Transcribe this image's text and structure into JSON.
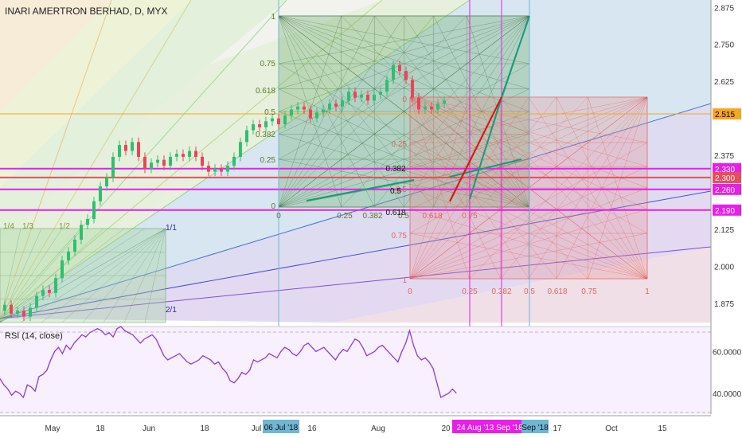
{
  "title": "INARI AMERTRON BERHAD, D, MYX",
  "rsi_label": "RSI (14, close)",
  "price_axis": {
    "ticks": [
      "2.875",
      "2.750",
      "2.625",
      "2.375",
      "2.125",
      "2.000",
      "1.875"
    ]
  },
  "rsi_axis": {
    "ticks": [
      "60.0000",
      "40.0000"
    ]
  },
  "time_axis": {
    "ticks": [
      "May",
      "18",
      "Jun",
      "18",
      "Jul",
      "16",
      "Aug",
      "20",
      "17",
      "Oct",
      "15"
    ]
  },
  "price_badges": [
    {
      "label": "2.515",
      "color": "#f5a623",
      "text_color": "#000000"
    },
    {
      "label": "2.330",
      "color": "#e91ee9",
      "text_color": "#ffffff"
    },
    {
      "label": "2.300",
      "color": "#e84d5b",
      "text_color": "#ffffff"
    },
    {
      "label": "2.260",
      "color": "#e91ee9",
      "text_color": "#ffffff"
    },
    {
      "label": "2.190",
      "color": "#e91ee9",
      "text_color": "#ffffff"
    }
  ],
  "date_badges": [
    {
      "label": "06 Jul '18",
      "color": "#6fb6d4"
    },
    {
      "label": "24 Aug '18",
      "color": "#e91ee9"
    },
    {
      "label": "13 Sep '18",
      "color": "#e91ee9"
    },
    {
      "label": "Sep '18",
      "color": "#6fb6d4"
    }
  ],
  "fan_labels": [
    "1/4",
    "1/3",
    "1/2",
    "1/1",
    "2/1"
  ],
  "green_box": {
    "left": [
      "1",
      "0.75",
      "0.618",
      "0.5",
      "0.382",
      "0.25",
      "0"
    ],
    "bottom": [
      "0",
      "0.25",
      "0.382",
      "0.5"
    ]
  },
  "red_box": {
    "left": [
      "0",
      "0.25",
      "0.5",
      "0.75",
      "1"
    ],
    "bottom": [
      "0",
      "0.25",
      "0.382",
      "0.5",
      "0.618",
      "0.75",
      "1"
    ]
  },
  "small_box": {
    "right": [
      "1/1"
    ]
  },
  "retracement_labels": [
    "0.382",
    "0.5",
    "0.618",
    "0.618",
    "0.75"
  ],
  "chart_data": {
    "type": "candlestick",
    "title": "INARI AMERTRON BERHAD, D, MYX",
    "y_range": [
      1.81,
      2.9
    ],
    "horizontal_levels": [
      2.515,
      2.33,
      2.3,
      2.26,
      2.19
    ],
    "rsi_range": [
      30,
      72
    ],
    "rsi_values": [
      47,
      44,
      42,
      39,
      41,
      40,
      38,
      44,
      43,
      41,
      48,
      49,
      51,
      56,
      60,
      62,
      59,
      63,
      61,
      64,
      66,
      68,
      67,
      69,
      70,
      71,
      70,
      68,
      69,
      67,
      71,
      72,
      70,
      69,
      68,
      66,
      64,
      66,
      67,
      68,
      66,
      62,
      58,
      56,
      57,
      58,
      59,
      57,
      55,
      54,
      55,
      56,
      58,
      57,
      56,
      54,
      55,
      52,
      50,
      46,
      45,
      47,
      50,
      49,
      51,
      56,
      55,
      56,
      57,
      59,
      58,
      57,
      60,
      62,
      61,
      59,
      58,
      60,
      63,
      64,
      62,
      60,
      61,
      62,
      60,
      58,
      56,
      59,
      61,
      60,
      63,
      66,
      65,
      62,
      58,
      59,
      60,
      62,
      63,
      61,
      59,
      57,
      55,
      60,
      64,
      70,
      63,
      58,
      56,
      57,
      55,
      52,
      45,
      38,
      39,
      40,
      42,
      40
    ]
  }
}
